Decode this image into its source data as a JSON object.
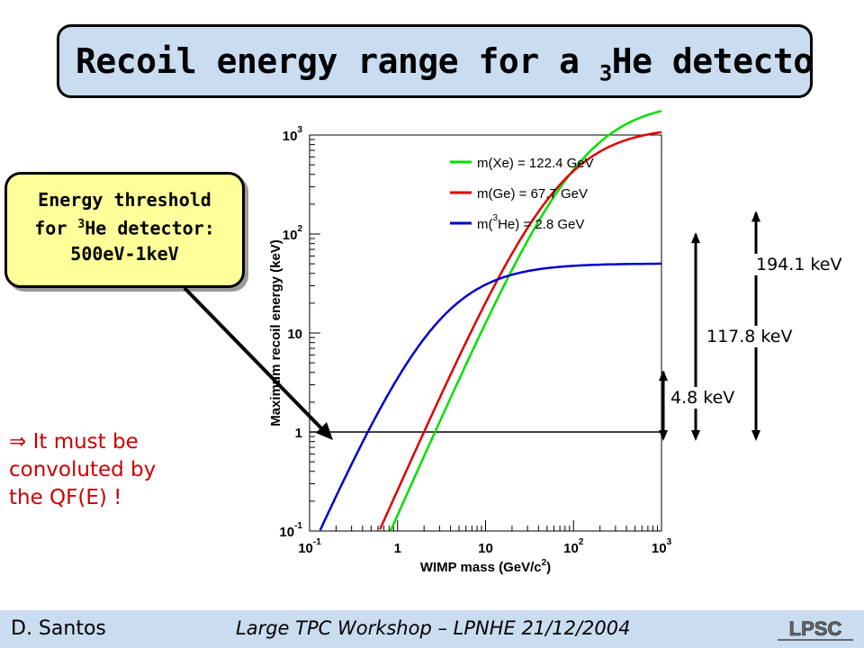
{
  "slide": {
    "title_main": "Recoil energy range for a",
    "title_sup": "3",
    "title_end": "He detector",
    "callout": {
      "line1": "Energy threshold",
      "line2_pre": "for",
      "line2_sup": "3",
      "line2_post": "He detector:",
      "line3": "500eV-1keV"
    },
    "note": {
      "line1": "⇒ It must be",
      "line2": "convoluted by",
      "line3": "the QF(E) !"
    },
    "footer": {
      "author": "D. Santos",
      "conference": "Large TPC Workshop – LPNHE  21/12/2004",
      "logo_text": "LPSC"
    },
    "colors": {
      "title_bg": "#c9dcf0",
      "callout_bg": "#ffff99",
      "note_text": "#cc0000",
      "xe": "#00e000",
      "ge": "#dd0000",
      "he": "#0000cc"
    }
  },
  "chart_data": {
    "type": "line",
    "xlabel": "WIMP mass (GeV/c",
    "xlabel_sup": "2",
    "xlabel_tail": ")",
    "ylabel": "Maximum recoil energy (keV)",
    "xscale": "log",
    "yscale": "log",
    "xlim": [
      0.1,
      1000
    ],
    "ylim": [
      0.1,
      1000
    ],
    "x_ticks": [
      {
        "value": 0.1,
        "base": "10",
        "exp": "-1"
      },
      {
        "value": 1,
        "base": "1",
        "exp": ""
      },
      {
        "value": 10,
        "base": "10",
        "exp": ""
      },
      {
        "value": 100,
        "base": "10",
        "exp": "2"
      },
      {
        "value": 1000,
        "base": "10",
        "exp": "3"
      }
    ],
    "y_ticks": [
      {
        "value": 0.1,
        "base": "10",
        "exp": "-1"
      },
      {
        "value": 1,
        "base": "1",
        "exp": ""
      },
      {
        "value": 10,
        "base": "10",
        "exp": ""
      },
      {
        "value": 100,
        "base": "10",
        "exp": "2"
      },
      {
        "value": 1000,
        "base": "10",
        "exp": "3"
      }
    ],
    "series": [
      {
        "name": "m(Xe) = 122.4 GeV",
        "label_pre": "m(Xe) = 122.4 GeV",
        "label_sup": "",
        "label_post": "",
        "target_mass": 122.4,
        "color": "#00e000",
        "max_value": 194.1
      },
      {
        "name": "m(Ge) = 67.7 GeV",
        "label_pre": "m(Ge) = 67.7 GeV",
        "label_sup": "",
        "label_post": "",
        "target_mass": 67.7,
        "color": "#dd0000",
        "max_value": 117.8
      },
      {
        "name": "m(3He) = 2.8 GeV",
        "label_pre": "m(",
        "label_sup": "3",
        "label_post": "He) = 2.8 GeV",
        "target_mass": 2.8,
        "color": "#0000cc",
        "max_value": 4.8
      }
    ],
    "threshold_line": 1,
    "annotations": [
      {
        "text": "194.1 keV",
        "value": 194.1
      },
      {
        "text": "117.8 keV",
        "value": 117.8
      },
      {
        "text": "4.8 keV",
        "value": 4.8
      }
    ],
    "legend_position": "top-right",
    "grid": false
  }
}
